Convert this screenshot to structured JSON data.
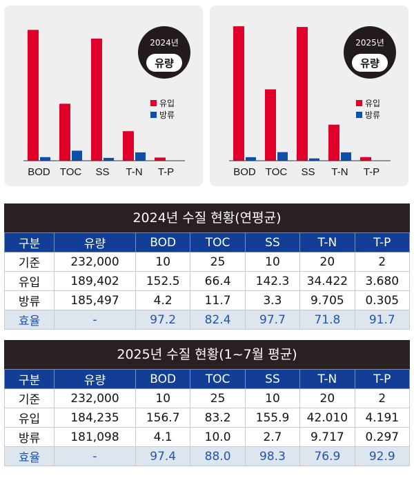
{
  "chart_data": [
    {
      "type": "bar",
      "badge_year": "2024년",
      "badge_metric": "유량",
      "categories": [
        "BOD",
        "TOC",
        "SS",
        "T-N",
        "T-P"
      ],
      "series": [
        {
          "name": "유입",
          "values": [
            152.5,
            66.4,
            142.3,
            34.422,
            3.68
          ]
        },
        {
          "name": "방류",
          "values": [
            4.2,
            11.7,
            3.3,
            9.705,
            0.305
          ]
        }
      ],
      "ylim": [
        0,
        160
      ],
      "grid": false,
      "legend": "right"
    },
    {
      "type": "bar",
      "badge_year": "2025년",
      "badge_metric": "유량",
      "categories": [
        "BOD",
        "TOC",
        "SS",
        "T-N",
        "T-P"
      ],
      "series": [
        {
          "name": "유입",
          "values": [
            156.7,
            83.2,
            155.9,
            42.01,
            4.191
          ]
        },
        {
          "name": "방류",
          "values": [
            4.1,
            10.0,
            2.7,
            9.717,
            0.297
          ]
        }
      ],
      "ylim": [
        0,
        160
      ],
      "grid": false,
      "legend": "right"
    }
  ],
  "colors": {
    "inflow": "#e0002a",
    "outflow": "#0f4fa8",
    "header_bg": "#123f95",
    "title_bg": "#2a2022"
  },
  "tables": [
    {
      "title": "2024년 수질 현황(연평균)",
      "headers": [
        "구분",
        "유량",
        "BOD",
        "TOC",
        "SS",
        "T-N",
        "T-P"
      ],
      "rows": [
        [
          "기준",
          "232,000",
          "10",
          "25",
          "10",
          "20",
          "2"
        ],
        [
          "유입",
          "189,402",
          "152.5",
          "66.4",
          "142.3",
          "34.422",
          "3.680"
        ],
        [
          "방류",
          "185,497",
          "4.2",
          "11.7",
          "3.3",
          "9.705",
          "0.305"
        ],
        [
          "효율",
          "-",
          "97.2",
          "82.4",
          "97.7",
          "71.8",
          "91.7"
        ]
      ]
    },
    {
      "title": "2025년 수질 현황(1~7월 평균)",
      "headers": [
        "구분",
        "유량",
        "BOD",
        "TOC",
        "SS",
        "T-N",
        "T-P"
      ],
      "rows": [
        [
          "기준",
          "232,000",
          "10",
          "25",
          "10",
          "20",
          "2"
        ],
        [
          "유입",
          "184,235",
          "156.7",
          "83.2",
          "155.9",
          "42.010",
          "4.191"
        ],
        [
          "방류",
          "181,098",
          "4.1",
          "10.0",
          "2.7",
          "9.717",
          "0.297"
        ],
        [
          "효율",
          "-",
          "97.4",
          "88.0",
          "98.3",
          "76.9",
          "92.9"
        ]
      ]
    }
  ]
}
